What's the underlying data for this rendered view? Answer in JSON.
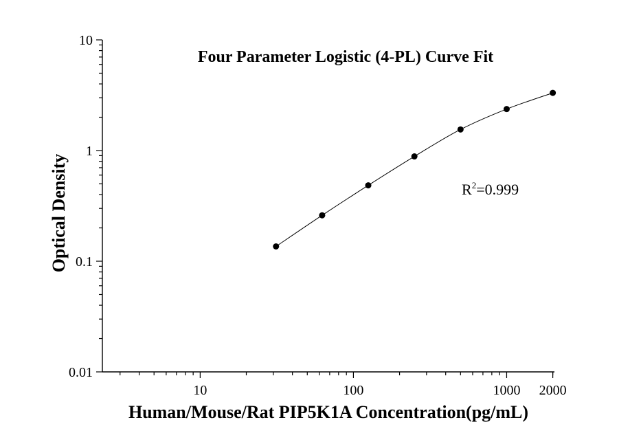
{
  "chart_data": {
    "type": "scatter",
    "title": "Four Parameter Logistic (4-PL) Curve Fit",
    "xlabel": "Human/Mouse/Rat PIP5K1A Concentration(pg/mL)",
    "ylabel": "Optical Density",
    "x_scale": "log",
    "y_scale": "log",
    "xlim": [
      2.3,
      2050
    ],
    "ylim": [
      0.01,
      10
    ],
    "x_ticks": [
      {
        "value": 10,
        "label": "10"
      },
      {
        "value": 100,
        "label": "100"
      },
      {
        "value": 1000,
        "label": "1000"
      },
      {
        "value": 2000,
        "label": "2000"
      }
    ],
    "y_ticks": [
      {
        "value": 0.01,
        "label": "0.01"
      },
      {
        "value": 0.1,
        "label": "0.1"
      },
      {
        "value": 1,
        "label": "1"
      },
      {
        "value": 10,
        "label": "10"
      }
    ],
    "grid": false,
    "series": [
      {
        "x": [
          31.25,
          62.5,
          125,
          250,
          500,
          1000,
          2000
        ],
        "y": [
          0.136,
          0.26,
          0.485,
          0.885,
          1.55,
          2.37,
          3.32
        ]
      }
    ],
    "fit_curve": {
      "model": "4-PL",
      "x_range": [
        31.25,
        2000
      ]
    },
    "annotation": {
      "r2_base": "R",
      "r2_sup": "2",
      "r2_value": "=0.999"
    }
  }
}
